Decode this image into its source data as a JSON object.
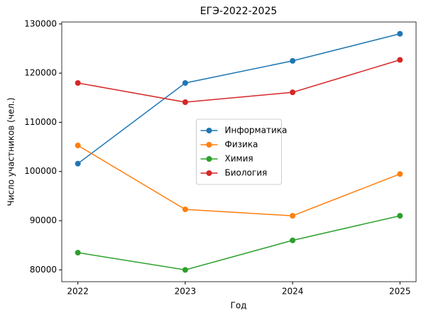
{
  "chart_data": {
    "type": "line",
    "title": "ЕГЭ-2022-2025",
    "x_label": "Год",
    "y_label": "Число участников (чел.)",
    "x": [
      2022,
      2023,
      2024,
      2025
    ],
    "series": [
      {
        "name": "Информатика",
        "color": "#1f77b4",
        "values": [
          101600,
          118000,
          122500,
          128000
        ]
      },
      {
        "name": "Физика",
        "color": "#ff7f0e",
        "values": [
          105300,
          92300,
          91000,
          99500
        ]
      },
      {
        "name": "Химия",
        "color": "#2ca02c",
        "values": [
          83500,
          80000,
          86000,
          91000
        ]
      },
      {
        "name": "Биология",
        "color": "#d62728",
        "values": [
          118000,
          114100,
          116100,
          122700
        ]
      }
    ],
    "xlim": [
      2021.85,
      2025.15
    ],
    "xticks": [
      2022,
      2023,
      2024,
      2025
    ],
    "ylim": [
      77600,
      130400
    ],
    "yticks": [
      80000,
      90000,
      100000,
      110000,
      120000,
      130000
    ],
    "legend": "center"
  }
}
